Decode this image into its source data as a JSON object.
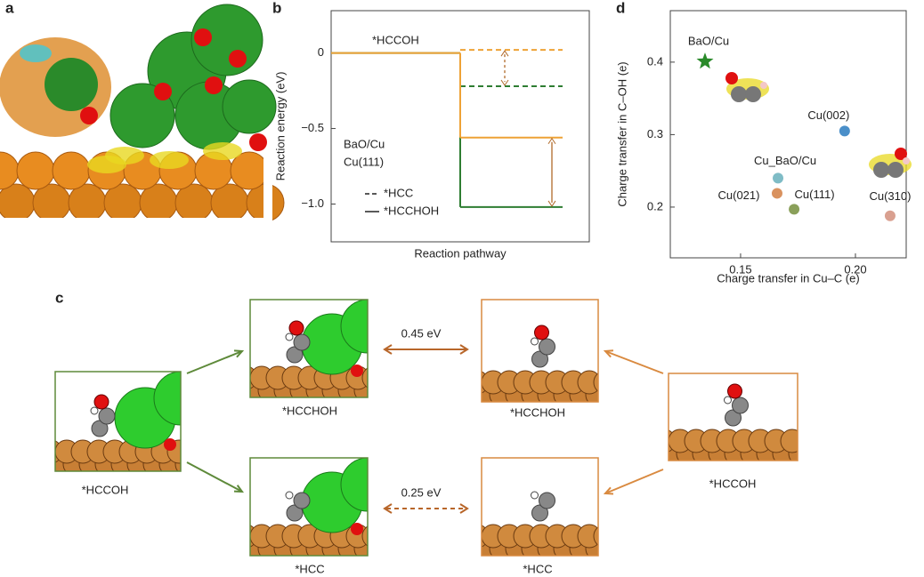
{
  "panel_labels": [
    "a",
    "b",
    "c",
    "d"
  ],
  "chart_data": [
    {
      "type": "energy-diagram",
      "ylabel": "Reaction energy (eV)",
      "xlabel": "Reaction pathway",
      "categories": [
        "*HCCOH",
        "*HCC",
        "*HCCHOH"
      ],
      "series": [
        {
          "name": "BaO/Cu",
          "color": "#2e7d32",
          "values": [
            0,
            -0.22,
            -1.02
          ]
        },
        {
          "name": "Cu(111)",
          "color": "#eea236",
          "values": [
            0,
            0.02,
            -0.56
          ]
        }
      ],
      "ylim": [
        -1.25,
        0.28
      ],
      "yticks": [
        0,
        {
          "value": -0.5,
          "label": "−0.5"
        },
        {
          "value": -1.0,
          "label": "−1.0"
        }
      ]
    },
    {
      "type": "scatter",
      "xlabel": "Charge transfer in Cu–C (e)",
      "ylabel": "Charge transfer in C–OH (e)",
      "series": [
        {
          "name": "BaO/Cu",
          "color": "#2a8a2a",
          "marker": "star",
          "x": [
            0.1345
          ],
          "values": [
            0.401
          ]
        },
        {
          "name": "Cu(002)",
          "color": "#4a8fc9",
          "marker": "circle",
          "x": [
            0.1953
          ],
          "values": [
            0.305
          ]
        },
        {
          "name": "Cu_BaO/Cu",
          "color": "#7fbcc6",
          "marker": "circle",
          "x": [
            0.1663
          ],
          "values": [
            0.24
          ]
        },
        {
          "name": "Cu(021)",
          "color": "#d9925f",
          "marker": "circle",
          "x": [
            0.1659
          ],
          "values": [
            0.219
          ]
        },
        {
          "name": "Cu(111)",
          "color": "#8aa05a",
          "marker": "circle",
          "x": [
            0.1733
          ],
          "values": [
            0.197
          ]
        },
        {
          "name": "Cu(310)",
          "color": "#d9a090",
          "marker": "circle",
          "x": [
            0.2151
          ],
          "values": [
            0.188
          ]
        }
      ],
      "xlim": [
        0.1194,
        0.2221
      ],
      "ylim": [
        0.13,
        0.471
      ],
      "xticks": [
        0.15,
        {
          "value": 0.2,
          "label": "0.20"
        }
      ],
      "yticks": [
        0.2,
        0.3,
        0.4
      ]
    }
  ],
  "diagram": {
    "nodes": [
      {
        "label": "*HCCOH"
      },
      {
        "label": "*HCCHOH"
      },
      {
        "label": "*HCC"
      },
      {
        "label": "*HCCHOH"
      },
      {
        "label": "*HCC"
      },
      {
        "label": "*HCCOH"
      }
    ],
    "edges": [
      {
        "label": "0.45 eV"
      },
      {
        "label": "0.25 eV"
      }
    ]
  }
}
